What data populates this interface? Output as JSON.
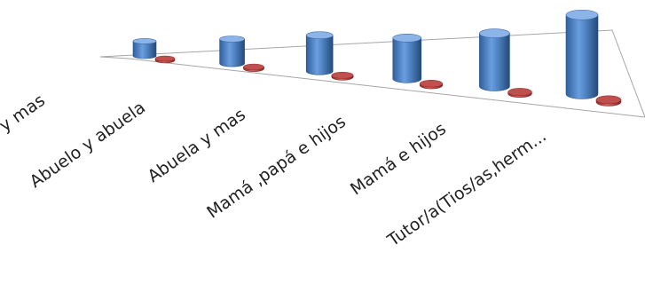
{
  "chart_data": {
    "type": "bar",
    "categories": [
      "Papá,hijos y mas",
      "Abuelo y abuela",
      "Abuela y mas",
      "Mamá ,papá e hijos",
      "Mamá  e hijos",
      "Tutor/a(Tios/as,herm..."
    ],
    "series": [
      {
        "values": [
          18,
          30,
          44,
          50,
          65,
          97
        ]
      },
      {
        "values": [
          1,
          1,
          1,
          2,
          2,
          3
        ]
      }
    ],
    "colors": [
      "#4a7ebb",
      "#c0504d"
    ],
    "ylim": [
      0,
      100
    ],
    "three_d": true,
    "grid": false,
    "legend": "none"
  }
}
